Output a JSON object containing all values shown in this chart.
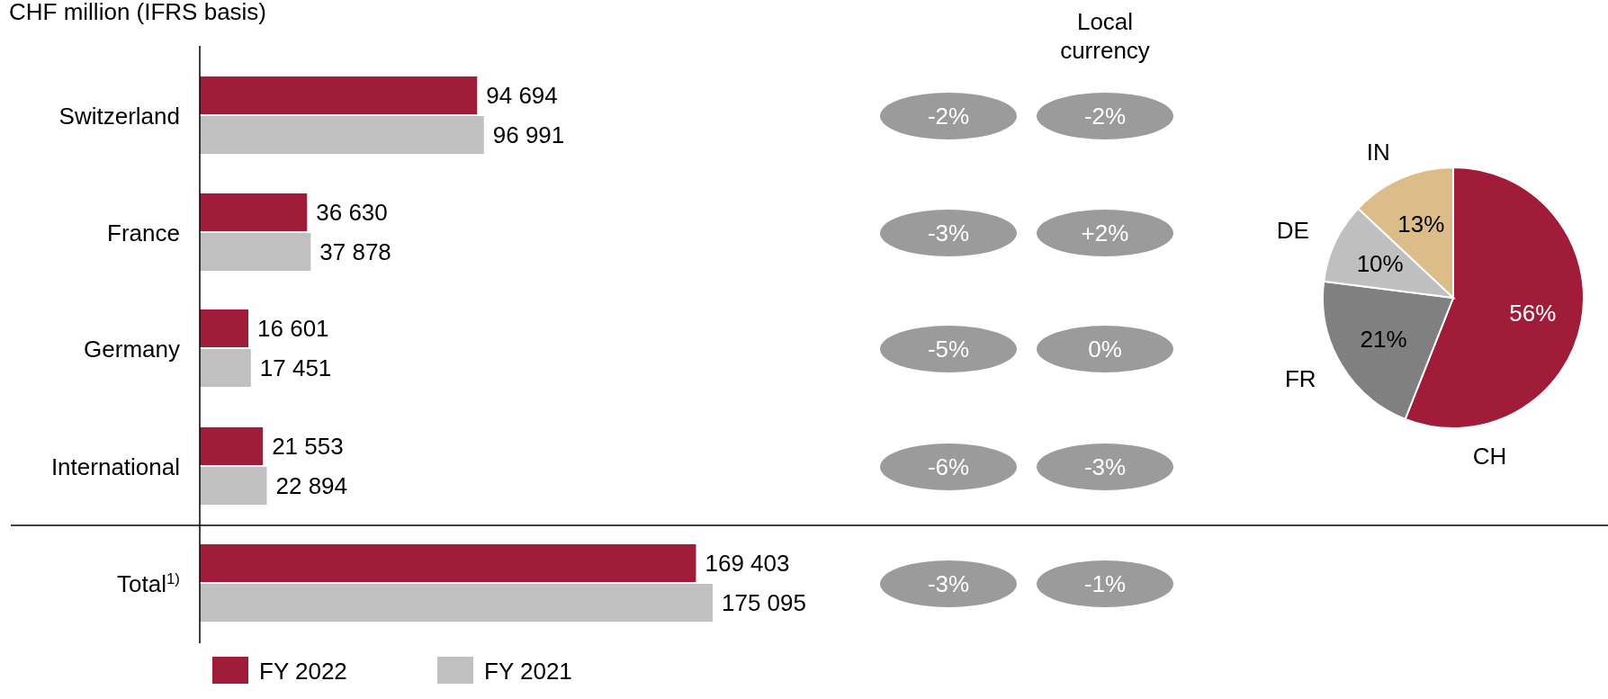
{
  "chart_data": [
    {
      "type": "bar",
      "orientation": "horizontal",
      "title": "CHF million (IFRS basis)",
      "categories": [
        "Switzerland",
        "France",
        "Germany",
        "International",
        "Total$^{1)}$"
      ],
      "series": [
        {
          "name": "FY 2022",
          "color": "#a01c38",
          "values": [
            94694,
            36630,
            16601,
            21553,
            169403
          ],
          "value_labels": [
            "94 694",
            "36 630",
            "16 601",
            "21 553",
            "169 403"
          ]
        },
        {
          "name": "FY 2021",
          "color": "#c0c0c0",
          "values": [
            96991,
            37878,
            17451,
            22894,
            175095
          ],
          "value_labels": [
            "96 991",
            "37 878",
            "17 451",
            "22 894",
            "175 095"
          ]
        }
      ],
      "legend": "bottom left",
      "annotations": [
        "Local currency",
        "-2%",
        "-2%",
        "-3%",
        "+2%",
        "-5%",
        "0%",
        "-6%",
        "-3%",
        "-3%",
        "-1%"
      ]
    },
    {
      "type": "pie",
      "categories": [
        "CH",
        "FR",
        "DE",
        "IN"
      ],
      "values": [
        56,
        21,
        10,
        13
      ],
      "colors": [
        "#a01c38",
        "#808080",
        "#bfbfbf",
        "#dcbd8a"
      ],
      "value_labels": [
        "56%",
        "21%",
        "10%",
        "13%"
      ]
    }
  ]
}
